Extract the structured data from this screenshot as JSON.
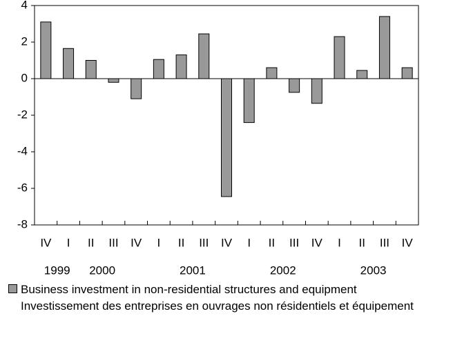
{
  "chart_data": {
    "type": "bar",
    "categories": [
      "IV",
      "I",
      "II",
      "III",
      "IV",
      "I",
      "II",
      "III",
      "IV",
      "I",
      "II",
      "III",
      "IV",
      "I",
      "II",
      "III",
      "IV"
    ],
    "years": [
      "1999",
      null,
      "2000",
      null,
      null,
      null,
      "2001",
      null,
      null,
      null,
      "2002",
      null,
      null,
      null,
      "2003",
      null,
      null
    ],
    "series": [
      {
        "name": "Business investment in non-residential structures and equipment",
        "color": "#999999",
        "values": [
          3.1,
          1.65,
          1.0,
          -0.2,
          -1.1,
          1.05,
          1.3,
          2.45,
          -6.45,
          -2.4,
          0.6,
          -0.75,
          -1.35,
          2.3,
          0.45,
          3.4,
          0.6
        ]
      }
    ],
    "legend_text_fr": "Investissement des entreprises en ouvrages non résidentiels et équipement",
    "ylim": [
      -8,
      4
    ],
    "yticks": [
      -8,
      -6,
      -4,
      -2,
      0,
      2,
      4
    ]
  }
}
